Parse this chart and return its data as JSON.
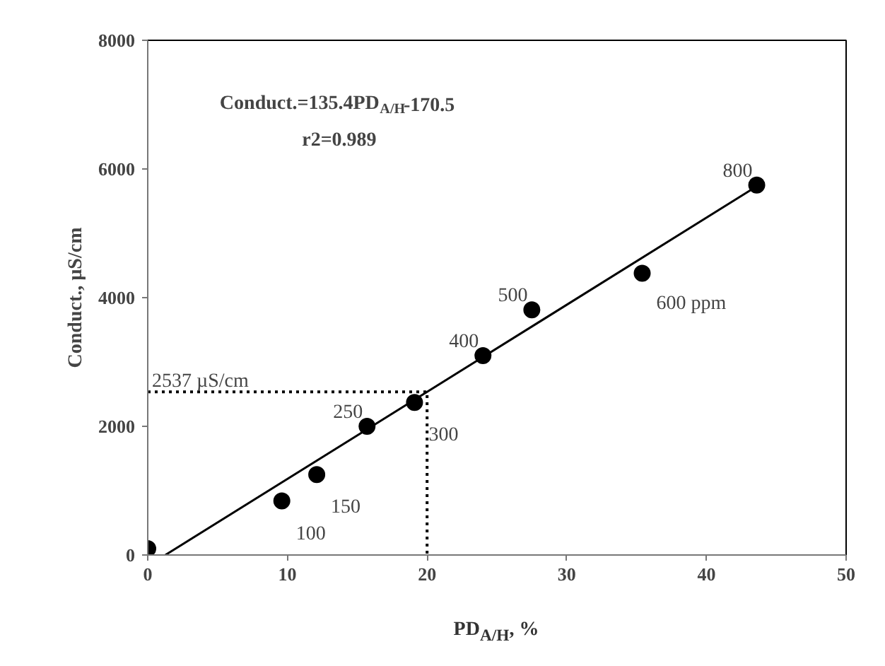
{
  "chart_data": {
    "type": "scatter",
    "xlabel": "PD$_{A/H}$, %",
    "ylabel": "Conduct., µS/cm",
    "xlim": [
      0,
      50
    ],
    "xticks": [
      0,
      10,
      20,
      30,
      40,
      50
    ],
    "ylim": [
      0,
      8000
    ],
    "yticks": [
      0,
      2000,
      4000,
      6000,
      8000
    ],
    "grid": false,
    "series": [
      {
        "type": "scatter",
        "x": [
          0,
          9.6,
          12.1,
          15.7,
          19.1,
          24.0,
          27.5,
          35.4,
          43.6
        ],
        "values": [
          100,
          840,
          1250,
          2000,
          2370,
          3100,
          3810,
          4380,
          5750
        ],
        "color": "#000000",
        "marker": "circle"
      },
      {
        "type": "line",
        "x": [
          1.26,
          43.6
        ],
        "values": [
          0,
          5730
        ],
        "color": "#000000",
        "line_style": "solid",
        "marker": "none"
      },
      {
        "type": "line",
        "x": [
          0,
          20,
          20
        ],
        "values": [
          2537,
          2537,
          0
        ],
        "color": "#000000",
        "line_style": "dotted",
        "marker": "none"
      }
    ],
    "annotations": [
      "Conduct.=135.4PD$_{A/H}$-170.5",
      "r2=0.989",
      {
        "text": "2537 µS/cm",
        "x": 0,
        "y": 2537
      },
      {
        "text": "100",
        "x": 9.6,
        "y": 840
      },
      {
        "text": "150",
        "x": 12.1,
        "y": 1250
      },
      {
        "text": "250",
        "x": 15.7,
        "y": 2000
      },
      {
        "text": "300",
        "x": 19.1,
        "y": 2370
      },
      {
        "text": "400",
        "x": 24.0,
        "y": 3100
      },
      {
        "text": "500",
        "x": 27.5,
        "y": 3810
      },
      {
        "text": "600 ppm",
        "x": 35.4,
        "y": 4380
      },
      {
        "text": "800",
        "x": 43.6,
        "y": 5750
      }
    ]
  }
}
